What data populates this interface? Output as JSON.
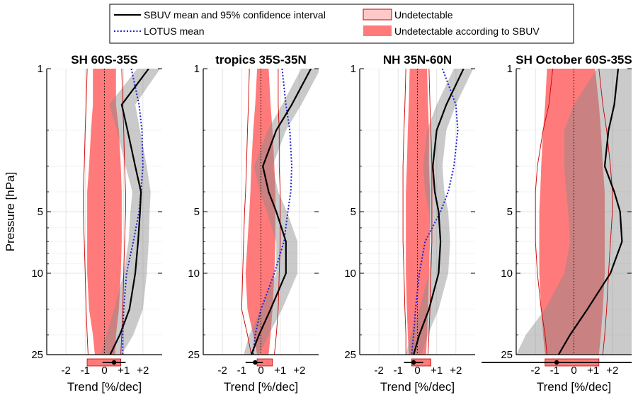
{
  "chart_data": {
    "type": "line",
    "ylabel": "Pressure [hPa]",
    "y_scale": "log",
    "y_reversed": true,
    "ylim": [
      1,
      25
    ],
    "y_ticks": [
      1,
      5,
      10,
      25
    ],
    "y_tick_labels": [
      "1",
      "5",
      "10",
      "25"
    ],
    "xlim": [
      -3,
      3
    ],
    "x_ticks": [
      -2,
      -1,
      0,
      1,
      2
    ],
    "x_tick_labels": [
      "-2",
      "-1",
      "0",
      "+1",
      "+2"
    ],
    "xlabel": "Trend [%/dec]",
    "grid": true,
    "legend_position": "top-center",
    "legend": [
      {
        "name": "SBUV mean and 95% confidence interval",
        "style": "black-line"
      },
      {
        "name": "LOTUS mean",
        "style": "blue-dotted"
      },
      {
        "name": "Undetectable",
        "style": "pink-box"
      },
      {
        "name": "Undetectable according to SBUV",
        "style": "red-fill"
      }
    ],
    "colors": {
      "sbuv": "#000000",
      "ci": "#c9c9c9",
      "lotus": "#1f1fcc",
      "undet_fill": "#ff7a7a",
      "undet_line": "#cc0000"
    },
    "panels": [
      {
        "title": "SH 60S-35S",
        "pressure": [
          1,
          1.5,
          2,
          3,
          4,
          5,
          7,
          10,
          15,
          20,
          25
        ],
        "sbuv_mean": [
          2.3,
          0.9,
          1.2,
          1.6,
          1.9,
          1.85,
          1.75,
          1.6,
          1.3,
          0.8,
          0.3
        ],
        "sbuv_ci_low": [
          1.7,
          0.25,
          0.65,
          1.1,
          1.45,
          1.35,
          1.25,
          1.0,
          0.5,
          0.1,
          -0.2
        ],
        "sbuv_ci_high": [
          2.9,
          1.6,
          1.85,
          2.2,
          2.4,
          2.35,
          2.3,
          2.2,
          2.0,
          1.5,
          0.9
        ],
        "lotus_mean": [
          1.4,
          1.8,
          1.95,
          2.0,
          1.9,
          1.8,
          1.5,
          1.15,
          1.0,
          0.95,
          0.95
        ],
        "undetectable_sbuv_low": [
          -0.6,
          -0.6,
          -0.7,
          -0.8,
          -0.9,
          -0.9,
          -0.9,
          -0.9,
          -0.8,
          -0.6,
          -0.5
        ],
        "undetectable_sbuv_high": [
          0.6,
          0.6,
          0.75,
          0.85,
          0.9,
          0.9,
          0.9,
          0.85,
          0.75,
          0.6,
          0.55
        ],
        "undetectable_low": [
          -0.9,
          -0.95,
          -1.0,
          -1.05,
          -1.1,
          -1.1,
          -1.05,
          -1.0,
          -0.95,
          -0.9,
          -0.85
        ],
        "undetectable_high": [
          0.9,
          0.95,
          1.0,
          1.05,
          1.1,
          1.1,
          1.05,
          1.0,
          0.95,
          0.9,
          0.85
        ],
        "bottom_mean": 0.5,
        "bottom_ci": [
          -0.1,
          1.1
        ],
        "bottom_box": [
          -0.9,
          0.85
        ]
      },
      {
        "title": "tropics 35S-35N",
        "pressure": [
          1,
          1.5,
          2,
          3,
          4,
          5,
          7,
          10,
          15,
          20,
          25
        ],
        "sbuv_mean": [
          2.6,
          1.6,
          0.8,
          0.1,
          0.4,
          0.8,
          1.3,
          1.3,
          0.5,
          -0.1,
          -0.5
        ],
        "sbuv_ci_low": [
          2.1,
          1.1,
          0.35,
          -0.35,
          -0.05,
          0.3,
          0.8,
          0.8,
          0.0,
          -0.6,
          -0.9
        ],
        "sbuv_ci_high": [
          3.1,
          2.1,
          1.3,
          0.6,
          0.9,
          1.35,
          1.9,
          1.9,
          1.1,
          0.4,
          -0.1
        ],
        "lotus_mean": [
          1.1,
          1.3,
          1.5,
          1.6,
          1.55,
          1.4,
          1.2,
          0.7,
          0.0,
          -0.3,
          -0.4
        ],
        "undetectable_sbuv_low": [
          -0.2,
          -0.3,
          -0.4,
          -0.5,
          -0.55,
          -0.6,
          -0.7,
          -0.8,
          -0.7,
          -0.4,
          -0.2
        ],
        "undetectable_sbuv_high": [
          0.4,
          0.5,
          0.6,
          0.7,
          0.75,
          0.75,
          0.75,
          0.7,
          0.6,
          0.5,
          0.4
        ],
        "undetectable_low": [
          -0.6,
          -0.65,
          -0.7,
          -0.75,
          -0.8,
          -0.85,
          -0.9,
          -0.95,
          -1.0,
          -0.7,
          -0.5
        ],
        "undetectable_high": [
          0.9,
          0.9,
          0.95,
          0.95,
          1.0,
          1.0,
          1.0,
          0.95,
          0.9,
          0.8,
          0.7
        ],
        "bottom_mean": -0.3,
        "bottom_ci": [
          -0.8,
          0.1
        ],
        "bottom_box": [
          -0.2,
          0.6
        ]
      },
      {
        "title": "NH 35N-60N",
        "pressure": [
          1,
          1.5,
          2,
          3,
          4,
          5,
          7,
          10,
          15,
          20,
          25
        ],
        "sbuv_mean": [
          2.4,
          1.5,
          1.0,
          0.8,
          0.9,
          1.1,
          1.2,
          1.1,
          0.6,
          0.1,
          -0.2
        ],
        "sbuv_ci_low": [
          1.9,
          1.0,
          0.5,
          0.3,
          0.4,
          0.6,
          0.7,
          0.6,
          0.1,
          -0.35,
          -0.6
        ],
        "sbuv_ci_high": [
          2.9,
          2.0,
          1.5,
          1.3,
          1.4,
          1.6,
          1.7,
          1.6,
          1.1,
          0.55,
          0.2
        ],
        "lotus_mean": [
          1.3,
          2.0,
          2.1,
          1.9,
          1.6,
          1.2,
          0.4,
          0.1,
          -0.1,
          -0.2,
          -0.3
        ],
        "undetectable_sbuv_low": [
          -0.4,
          -0.45,
          -0.5,
          -0.55,
          -0.6,
          -0.6,
          -0.6,
          -0.6,
          -0.55,
          -0.5,
          -0.45
        ],
        "undetectable_sbuv_high": [
          0.5,
          0.55,
          0.6,
          0.6,
          0.65,
          0.65,
          0.65,
          0.6,
          0.55,
          0.5,
          0.45
        ],
        "undetectable_low": [
          -0.6,
          -0.65,
          -0.7,
          -0.75,
          -0.75,
          -0.75,
          -0.75,
          -0.7,
          -0.65,
          -0.6,
          -0.6
        ],
        "undetectable_high": [
          0.6,
          0.65,
          0.7,
          0.75,
          0.75,
          0.75,
          0.75,
          0.7,
          0.65,
          0.6,
          0.55
        ],
        "bottom_mean": -0.2,
        "bottom_ci": [
          -0.7,
          0.3
        ],
        "bottom_box": [
          -0.3,
          0.7
        ]
      },
      {
        "title": "SH October 60S-35S",
        "pressure": [
          1,
          1.5,
          2,
          3,
          4,
          5,
          7,
          10,
          15,
          20,
          25
        ],
        "sbuv_mean": [
          2.3,
          2.1,
          1.8,
          1.6,
          2.1,
          2.4,
          2.5,
          1.9,
          0.7,
          -0.2,
          -0.8
        ],
        "sbuv_ci_low": [
          1.2,
          0.0,
          -0.5,
          -0.5,
          -0.4,
          -0.3,
          -0.2,
          -0.5,
          -1.5,
          -2.5,
          -3.0
        ],
        "sbuv_ci_high": [
          3.0,
          3.0,
          3.0,
          3.0,
          3.0,
          3.0,
          3.0,
          3.0,
          3.0,
          3.0,
          3.0
        ],
        "undetectable_sbuv_low": [
          -1.4,
          -1.5,
          -1.6,
          -1.7,
          -1.75,
          -1.8,
          -1.8,
          -1.8,
          -1.7,
          -1.6,
          -1.5
        ],
        "undetectable_sbuv_high": [
          1.1,
          1.3,
          1.4,
          1.5,
          1.6,
          1.6,
          1.6,
          1.6,
          1.5,
          1.4,
          1.3
        ],
        "undetectable_low": [
          -1.1,
          -1.3,
          -1.6,
          -1.9,
          -2.0,
          -2.0,
          -2.0,
          -1.9,
          -1.7,
          -1.5,
          -1.4
        ],
        "undetectable_high": [
          1.3,
          1.5,
          1.7,
          1.9,
          2.0,
          2.0,
          1.9,
          1.8,
          1.7,
          1.6,
          1.5
        ],
        "bottom_mean": -0.9,
        "bottom_ci": [
          -4.8,
          3.0
        ],
        "bottom_box": [
          -1.5,
          1.3
        ]
      }
    ]
  }
}
